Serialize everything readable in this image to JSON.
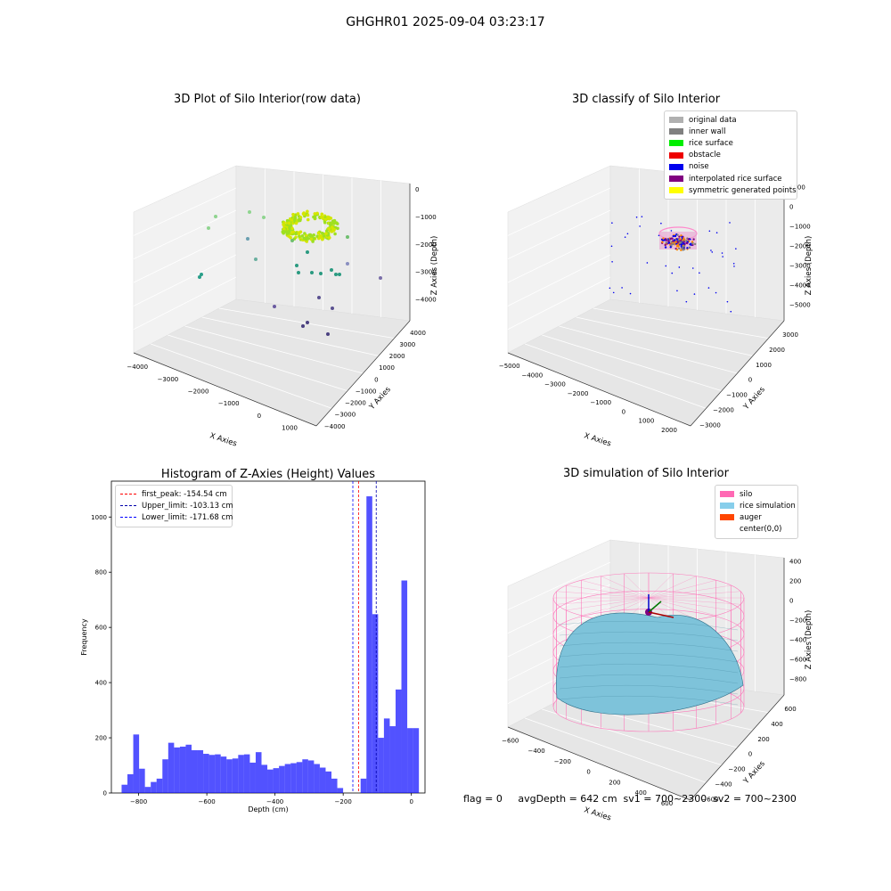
{
  "suptitle": "GHGHR01 2025-09-04 03:23:17",
  "panels": {
    "raw": {
      "title": "3D Plot of Silo Interior(row data)",
      "xlabel": "X Axies",
      "ylabel": "Y Axies",
      "zlabel": "Z Axies (Depth)",
      "xticks": [
        "−4000",
        "−3000",
        "−2000",
        "−1000",
        "0",
        "1000"
      ],
      "yticks": [
        "−4000",
        "−3000",
        "−2000",
        "−1000",
        "0",
        "1000",
        "2000",
        "3000",
        "4000"
      ],
      "zticks": [
        "0",
        "−1000",
        "−2000",
        "−3000",
        "−4000"
      ]
    },
    "classify": {
      "title": "3D classify of Silo Interior",
      "xlabel": "X Axies",
      "ylabel": "Y Axies",
      "zlabel": "Z Axies (Depth)",
      "xticks": [
        "−5000",
        "−4000",
        "−3000",
        "−2000",
        "−1000",
        "0",
        "1000",
        "2000"
      ],
      "yticks": [
        "−3000",
        "−2000",
        "−1000",
        "0",
        "1000",
        "2000",
        "3000"
      ],
      "zticks": [
        "1000",
        "0",
        "−1000",
        "−2000",
        "−3000",
        "−4000",
        "−5000"
      ],
      "legend": [
        {
          "label": "original data",
          "color": "#b0b0b0"
        },
        {
          "label": "inner wall",
          "color": "#808080"
        },
        {
          "label": "rice surface",
          "color": "#00ee00"
        },
        {
          "label": "obstacle",
          "color": "#ee0000"
        },
        {
          "label": "noise",
          "color": "#0000ee"
        },
        {
          "label": "interpolated rice surface",
          "color": "#800080"
        },
        {
          "label": "symmetric generated points",
          "color": "#ffff00"
        }
      ]
    },
    "histogram": {
      "legend": [
        {
          "label": "first_peak: -154.54 cm",
          "color": "#ff0000"
        },
        {
          "label": "Upper_limit: -103.13 cm",
          "color": "#0000aa"
        },
        {
          "label": "Lower_limit: -171.68 cm",
          "color": "#0000ff"
        }
      ]
    },
    "simulation": {
      "title": "3D simulation of Silo Interior",
      "xlabel": "X Axies",
      "ylabel": "Y Axies",
      "zlabel": "Z Axies (Depth)",
      "xticks": [
        "−600",
        "−400",
        "−200",
        "0",
        "200",
        "400",
        "600"
      ],
      "yticks": [
        "−600",
        "−400",
        "−200",
        "0",
        "200",
        "400",
        "600"
      ],
      "zticks": [
        "400",
        "200",
        "0",
        "−200",
        "−400",
        "−600",
        "−800"
      ],
      "legend": [
        {
          "label": "silo",
          "color": "#ff69b4"
        },
        {
          "label": "rice simulation",
          "color": "#87ceeb"
        },
        {
          "label": "auger",
          "color": "#ff4500"
        },
        {
          "label": "center(0,0)",
          "color": "transparent"
        }
      ]
    }
  },
  "footer": "flag = 0     avgDepth = 642 cm  sv1 = 700~2300  sv2 = 700~2300",
  "chart_data": [
    {
      "type": "bar",
      "title": "Histogram of Z-Axies (Height) Values",
      "xlabel": "Depth (cm)",
      "ylabel": "Frequency",
      "xlim": [
        -880,
        40
      ],
      "ylim": [
        0,
        1130
      ],
      "xticks": [
        -800,
        -600,
        -400,
        -200,
        0
      ],
      "yticks": [
        0,
        200,
        400,
        600,
        800,
        1000
      ],
      "bin_edges_start": -850,
      "bin_width": 17.1,
      "values": [
        30,
        68,
        212,
        88,
        22,
        40,
        52,
        122,
        182,
        165,
        168,
        175,
        155,
        155,
        142,
        138,
        140,
        132,
        122,
        125,
        138,
        140,
        110,
        148,
        102,
        85,
        90,
        98,
        105,
        108,
        112,
        122,
        118,
        105,
        92,
        78,
        52,
        18,
        0,
        0,
        0,
        52,
        1075,
        648,
        200,
        270,
        242,
        375,
        770,
        235,
        235
      ],
      "bar_color": "#0000ff",
      "vlines": [
        {
          "name": "first_peak",
          "x": -154.54,
          "color": "#ff0000"
        },
        {
          "name": "Upper_limit",
          "x": -103.13,
          "color": "#0000aa"
        },
        {
          "name": "Lower_limit",
          "x": -171.68,
          "color": "#0000ff"
        }
      ]
    }
  ]
}
